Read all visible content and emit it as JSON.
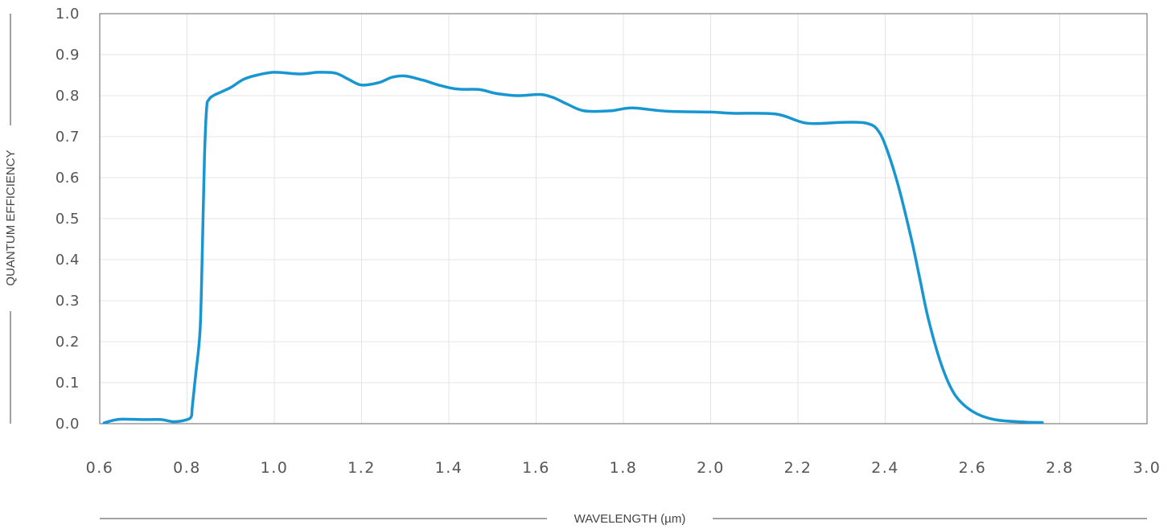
{
  "chart_data": {
    "type": "line",
    "title": "",
    "xlabel": "WAVELENGTH (µm)",
    "ylabel": "QUANTUM EFFICIENCY",
    "xlim": [
      0.6,
      3.0
    ],
    "ylim": [
      0.0,
      1.0
    ],
    "x_ticks": [
      "0.6",
      "0.8",
      "1.0",
      "1.2",
      "1.4",
      "1.6",
      "1.8",
      "2.0",
      "2.2",
      "2.4",
      "2.6",
      "2.8",
      "3.0"
    ],
    "y_ticks": [
      "0.0",
      "0.1",
      "0.2",
      "0.3",
      "0.4",
      "0.5",
      "0.6",
      "0.7",
      "0.8",
      "0.9",
      "1.0"
    ],
    "grid": true,
    "legend": "none",
    "colors": {
      "line": "#1896d1",
      "grid": "#e4e4e4",
      "frame": "#666666"
    },
    "series": [
      {
        "x": [
          0.61,
          0.63,
          0.65,
          0.7,
          0.74,
          0.77,
          0.8,
          0.81,
          0.812,
          0.82,
          0.83,
          0.835,
          0.84,
          0.845,
          0.85,
          0.86,
          0.88,
          0.9,
          0.93,
          0.96,
          1.0,
          1.06,
          1.1,
          1.14,
          1.17,
          1.2,
          1.24,
          1.27,
          1.3,
          1.34,
          1.38,
          1.42,
          1.47,
          1.51,
          1.56,
          1.61,
          1.64,
          1.67,
          1.71,
          1.77,
          1.82,
          1.9,
          2.0,
          2.05,
          2.15,
          2.22,
          2.3,
          2.34,
          2.36,
          2.38,
          2.4,
          2.43,
          2.46,
          2.48,
          2.5,
          2.53,
          2.56,
          2.6,
          2.65,
          2.72,
          2.76
        ],
        "y": [
          0.002,
          0.008,
          0.011,
          0.01,
          0.01,
          0.005,
          0.01,
          0.018,
          0.04,
          0.12,
          0.23,
          0.42,
          0.65,
          0.77,
          0.79,
          0.8,
          0.81,
          0.82,
          0.84,
          0.85,
          0.857,
          0.853,
          0.857,
          0.855,
          0.84,
          0.826,
          0.832,
          0.845,
          0.848,
          0.838,
          0.825,
          0.816,
          0.815,
          0.805,
          0.8,
          0.803,
          0.795,
          0.78,
          0.763,
          0.763,
          0.77,
          0.762,
          0.76,
          0.757,
          0.755,
          0.733,
          0.735,
          0.735,
          0.732,
          0.72,
          0.68,
          0.58,
          0.45,
          0.35,
          0.25,
          0.14,
          0.07,
          0.03,
          0.01,
          0.004,
          0.003
        ]
      }
    ]
  }
}
